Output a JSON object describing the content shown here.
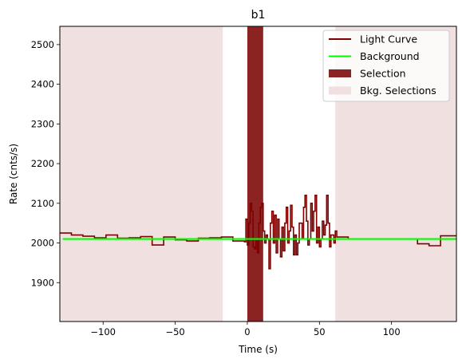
{
  "chart_data": {
    "type": "line",
    "title": "b1",
    "xlabel": "Time (s)",
    "ylabel": "Rate (cnts/s)",
    "xlim": [
      -130,
      145
    ],
    "ylim": [
      1802,
      2546
    ],
    "xticks": [
      -100,
      -50,
      0,
      50,
      100
    ],
    "xtick_labels": [
      "−100",
      "−50",
      "0",
      "50",
      "100"
    ],
    "yticks": [
      1900,
      2000,
      2100,
      2200,
      2300,
      2400,
      2500
    ],
    "ytick_labels": [
      "1900",
      "2000",
      "2100",
      "2200",
      "2300",
      "2400",
      "2500"
    ],
    "grid": false,
    "legend_position": "top-right",
    "legend": [
      {
        "label": "Light Curve",
        "kind": "line",
        "color": "#800000"
      },
      {
        "label": "Background",
        "kind": "line",
        "color": "#00ff00"
      },
      {
        "label": "Selection",
        "kind": "patch",
        "color": "#8b2323"
      },
      {
        "label": "Bkg. Selections",
        "kind": "patch",
        "color": "#f0e0e0"
      }
    ],
    "background": {
      "x": [
        -128,
        145
      ],
      "y": [
        2010,
        2010
      ],
      "color": "#00ff00"
    },
    "selection": {
      "x_range": [
        0,
        11
      ],
      "color": "#8b2323"
    },
    "bkg_selections": [
      {
        "x_range": [
          -130,
          -17
        ]
      },
      {
        "x_range": [
          61,
          145
        ]
      }
    ],
    "bkg_selection_color": "#f0e0e0",
    "light_curve": {
      "color": "#800000",
      "edges": [
        -130,
        -122,
        -114,
        -106,
        -98,
        -90,
        -82,
        -74,
        -66,
        -58,
        -50,
        -42,
        -34,
        -26,
        -18,
        -10,
        -2,
        -1,
        0,
        1,
        2,
        3,
        4,
        5,
        6,
        7,
        8,
        9,
        10,
        11,
        12,
        13,
        14,
        15,
        16,
        17,
        18,
        19,
        20,
        21,
        22,
        23,
        24,
        25,
        26,
        27,
        28,
        29,
        30,
        31,
        32,
        33,
        34,
        35,
        36,
        37,
        38,
        39,
        40,
        41,
        42,
        43,
        44,
        45,
        46,
        47,
        48,
        49,
        50,
        51,
        52,
        53,
        54,
        55,
        56,
        57,
        58,
        59,
        60,
        61,
        62,
        70,
        78,
        86,
        94,
        102,
        110,
        118,
        126,
        134,
        145
      ],
      "values": [
        2025,
        2020,
        2017,
        2013,
        2020,
        2012,
        2013,
        2016,
        1995,
        2015,
        2008,
        2005,
        2012,
        2013,
        2015,
        2005,
        2003,
        2060,
        1995,
        2050,
        2100,
        2080,
        1990,
        1985,
        2005,
        1975,
        2050,
        2090,
        2100,
        2030,
        2000,
        2020,
        2010,
        1935,
        2050,
        2080,
        2000,
        2070,
        1975,
        2060,
        2010,
        1965,
        2040,
        1980,
        2050,
        2090,
        2000,
        2030,
        2095,
        2040,
        1970,
        2020,
        1970,
        2000,
        2050,
        2050,
        2010,
        2090,
        2120,
        2055,
        1995,
        2010,
        2100,
        2030,
        2080,
        2120,
        2000,
        2040,
        1990,
        2010,
        2055,
        2020,
        2045,
        2120,
        2050,
        1990,
        2020,
        2020,
        2000,
        2030,
        2015,
        2010,
        2010,
        2010,
        2010,
        2010,
        2010,
        1998,
        1993,
        2018,
        2020
      ]
    }
  }
}
